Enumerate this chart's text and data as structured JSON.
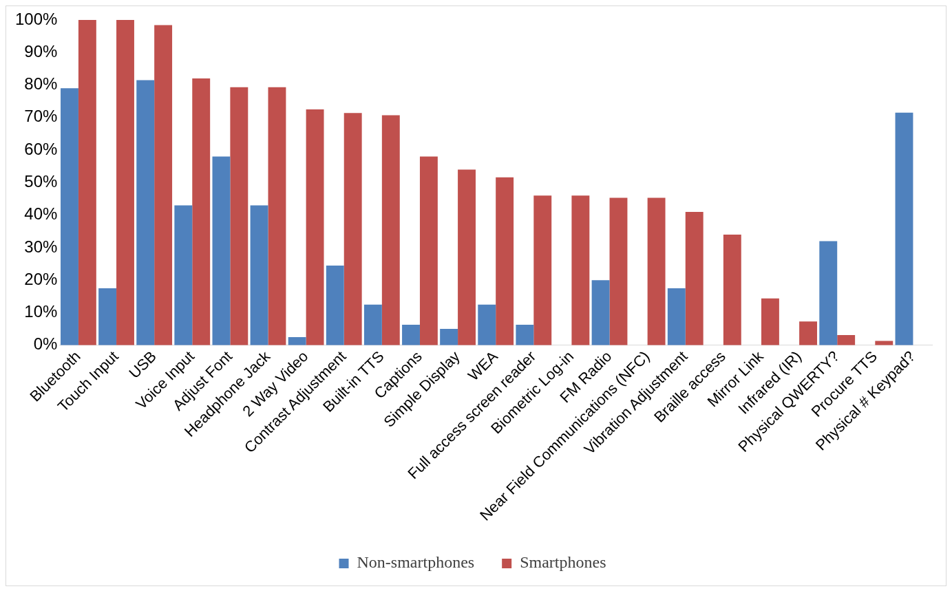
{
  "chart_data": {
    "type": "bar",
    "categories": [
      "Bluetooth",
      "Touch Input",
      "USB",
      "Voice Input",
      "Adjust Font",
      "Headphone Jack",
      "2 Way Video",
      "Contrast Adjustment",
      "Built-in TTS",
      "Captions",
      "Simple Display",
      "WEA",
      "Full access screen reader",
      "Biometric Log-in",
      "FM Radio",
      "Near Field Communications (NFC)",
      "Vibration Adjustment",
      "Braille access",
      "Mirror Link",
      "Infrared (IR)",
      "Physical QWERTY?",
      "Procure TTS",
      "Physical # Keypad?"
    ],
    "series": [
      {
        "name": "Non-smartphones",
        "color": "#4f81bd",
        "values": [
          79,
          17.5,
          81.5,
          43,
          58,
          43,
          2.5,
          24.5,
          12.5,
          6.3,
          5,
          12.5,
          6.3,
          0,
          20,
          0,
          17.5,
          0,
          0,
          0,
          32,
          0,
          71.5
        ]
      },
      {
        "name": "Smartphones",
        "color": "#c0504d",
        "values": [
          100,
          100,
          98.4,
          82,
          79.3,
          79.3,
          72.5,
          71.4,
          70.7,
          58,
          54,
          51.6,
          46,
          46,
          45.3,
          45.3,
          41,
          34,
          14.4,
          7.3,
          3.1,
          1.3,
          0
        ]
      }
    ],
    "ylim": [
      0,
      100
    ],
    "yticks": [
      {
        "value": 0,
        "label": "0%"
      },
      {
        "value": 10,
        "label": "10%"
      },
      {
        "value": 20,
        "label": "20%"
      },
      {
        "value": 30,
        "label": "30%"
      },
      {
        "value": 40,
        "label": "40%"
      },
      {
        "value": 50,
        "label": "50%"
      },
      {
        "value": 60,
        "label": "60%"
      },
      {
        "value": 70,
        "label": "70%"
      },
      {
        "value": 80,
        "label": "80%"
      },
      {
        "value": 90,
        "label": "90%"
      },
      {
        "value": 100,
        "label": "100%"
      }
    ],
    "grid": false,
    "legend": "bottom"
  }
}
